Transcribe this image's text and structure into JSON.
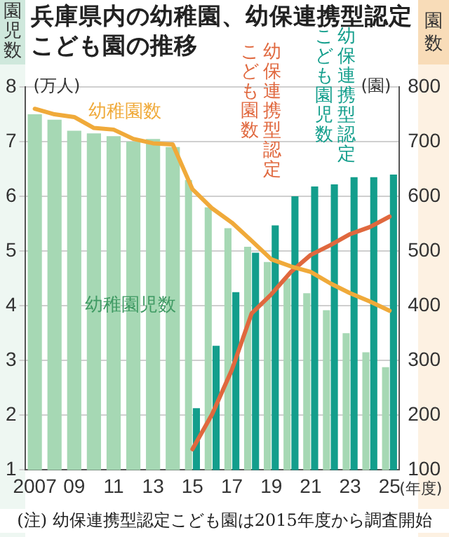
{
  "chart_data": {
    "type": "bar",
    "title": "兵庫県内の幼稚園、幼保連携型認定こども園の推移",
    "categories": [
      "2007",
      null,
      "09",
      null,
      "11",
      null,
      "13",
      null,
      "15",
      null,
      "17",
      null,
      "19",
      null,
      "21",
      null,
      "23",
      null,
      "25"
    ],
    "series": [
      {
        "name": "幼稚園児数",
        "color": "#a6d8b4",
        "values": [
          7.5,
          7.4,
          7.2,
          7.15,
          7.1,
          7.0,
          7.05,
          6.9,
          6.3,
          5.8,
          5.42,
          5.08,
          4.8,
          4.5,
          4.23,
          3.92,
          3.5,
          3.15,
          2.88
        ]
      },
      {
        "name": "幼保連携型認定こども園児数",
        "color": "#139e8c",
        "values": [
          null,
          null,
          null,
          null,
          null,
          null,
          null,
          null,
          2.13,
          3.27,
          4.25,
          4.97,
          5.47,
          6.0,
          6.18,
          6.22,
          6.35,
          6.35,
          6.4
        ]
      },
      {
        "name": "幼稚園数",
        "type": "line",
        "axis": "y2",
        "color": "#f0aa3a",
        "values": [
          760,
          750,
          745,
          725,
          722,
          705,
          697,
          695,
          613,
          578,
          552,
          519,
          485,
          472,
          462,
          441,
          423,
          408,
          391
        ]
      },
      {
        "name": "幼保連携型認定こども園数",
        "type": "line",
        "axis": "y2",
        "color": "#e0683e",
        "values": [
          null,
          null,
          null,
          null,
          null,
          null,
          null,
          null,
          138,
          202,
          283,
          386,
          421,
          462,
          493,
          511,
          531,
          544,
          563
        ]
      }
    ],
    "ylabel": "園児数",
    "y2label": "園数",
    "xlabel": "(年度)",
    "ylim": [
      1,
      8
    ],
    "yticks": [
      1,
      2,
      3,
      4,
      5,
      6,
      7,
      8
    ],
    "y2lim": [
      100,
      800
    ],
    "y2ticks": [
      100,
      200,
      300,
      400,
      500,
      600,
      700,
      800
    ],
    "grid": "y",
    "legend": false,
    "marker": "none",
    "line_style": "solid",
    "annotations": [
      "(万人)",
      "(園)",
      "(注) 幼保連携型認定こども園は2015年度から調査開始"
    ]
  }
}
